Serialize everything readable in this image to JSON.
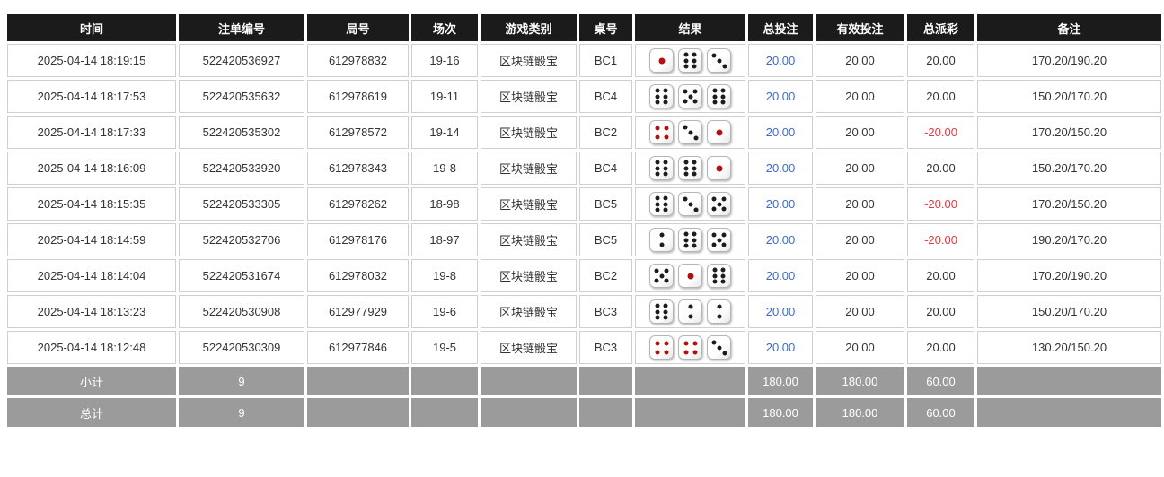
{
  "table": {
    "headers": [
      "时间",
      "注单编号",
      "局号",
      "场次",
      "游戏类别",
      "桌号",
      "结果",
      "总投注",
      "有效投注",
      "总派彩",
      "备注"
    ],
    "rows": [
      {
        "time": "2025-04-14 18:19:15",
        "bet_id": "522420536927",
        "round_id": "612978832",
        "session": "19-16",
        "game_type": "区块链骰宝",
        "table_no": "BC1",
        "dice": [
          1,
          6,
          3
        ],
        "total_bet": "20.00",
        "valid_bet": "20.00",
        "payout": "20.00",
        "remark": "170.20/190.20"
      },
      {
        "time": "2025-04-14 18:17:53",
        "bet_id": "522420535632",
        "round_id": "612978619",
        "session": "19-11",
        "game_type": "区块链骰宝",
        "table_no": "BC4",
        "dice": [
          6,
          5,
          6
        ],
        "total_bet": "20.00",
        "valid_bet": "20.00",
        "payout": "20.00",
        "remark": "150.20/170.20"
      },
      {
        "time": "2025-04-14 18:17:33",
        "bet_id": "522420535302",
        "round_id": "612978572",
        "session": "19-14",
        "game_type": "区块链骰宝",
        "table_no": "BC2",
        "dice": [
          4,
          3,
          1
        ],
        "total_bet": "20.00",
        "valid_bet": "20.00",
        "payout": "-20.00",
        "remark": "170.20/150.20"
      },
      {
        "time": "2025-04-14 18:16:09",
        "bet_id": "522420533920",
        "round_id": "612978343",
        "session": "19-8",
        "game_type": "区块链骰宝",
        "table_no": "BC4",
        "dice": [
          6,
          6,
          1
        ],
        "total_bet": "20.00",
        "valid_bet": "20.00",
        "payout": "20.00",
        "remark": "150.20/170.20"
      },
      {
        "time": "2025-04-14 18:15:35",
        "bet_id": "522420533305",
        "round_id": "612978262",
        "session": "18-98",
        "game_type": "区块链骰宝",
        "table_no": "BC5",
        "dice": [
          6,
          3,
          5
        ],
        "total_bet": "20.00",
        "valid_bet": "20.00",
        "payout": "-20.00",
        "remark": "170.20/150.20"
      },
      {
        "time": "2025-04-14 18:14:59",
        "bet_id": "522420532706",
        "round_id": "612978176",
        "session": "18-97",
        "game_type": "区块链骰宝",
        "table_no": "BC5",
        "dice": [
          2,
          6,
          5
        ],
        "total_bet": "20.00",
        "valid_bet": "20.00",
        "payout": "-20.00",
        "remark": "190.20/170.20"
      },
      {
        "time": "2025-04-14 18:14:04",
        "bet_id": "522420531674",
        "round_id": "612978032",
        "session": "19-8",
        "game_type": "区块链骰宝",
        "table_no": "BC2",
        "dice": [
          5,
          1,
          6
        ],
        "total_bet": "20.00",
        "valid_bet": "20.00",
        "payout": "20.00",
        "remark": "170.20/190.20"
      },
      {
        "time": "2025-04-14 18:13:23",
        "bet_id": "522420530908",
        "round_id": "612977929",
        "session": "19-6",
        "game_type": "区块链骰宝",
        "table_no": "BC3",
        "dice": [
          6,
          2,
          2
        ],
        "total_bet": "20.00",
        "valid_bet": "20.00",
        "payout": "20.00",
        "remark": "150.20/170.20"
      },
      {
        "time": "2025-04-14 18:12:48",
        "bet_id": "522420530309",
        "round_id": "612977846",
        "session": "19-5",
        "game_type": "区块链骰宝",
        "table_no": "BC3",
        "dice": [
          4,
          4,
          3
        ],
        "total_bet": "20.00",
        "valid_bet": "20.00",
        "payout": "20.00",
        "remark": "130.20/150.20"
      }
    ],
    "subtotal": {
      "label": "小计",
      "count": "9",
      "total_bet": "180.00",
      "valid_bet": "180.00",
      "payout": "60.00"
    },
    "total": {
      "label": "总计",
      "count": "9",
      "total_bet": "180.00",
      "valid_bet": "180.00",
      "payout": "60.00"
    }
  },
  "colors": {
    "header_bg": "#1b1b1b",
    "footer_bg": "#9b9b9b",
    "accent_blue": "#3a6bd2",
    "negative_red": "#e03a3a",
    "red_pip": "#b40f0f"
  },
  "icons": {
    "dice_red_pip_values": [
      1,
      4
    ]
  }
}
